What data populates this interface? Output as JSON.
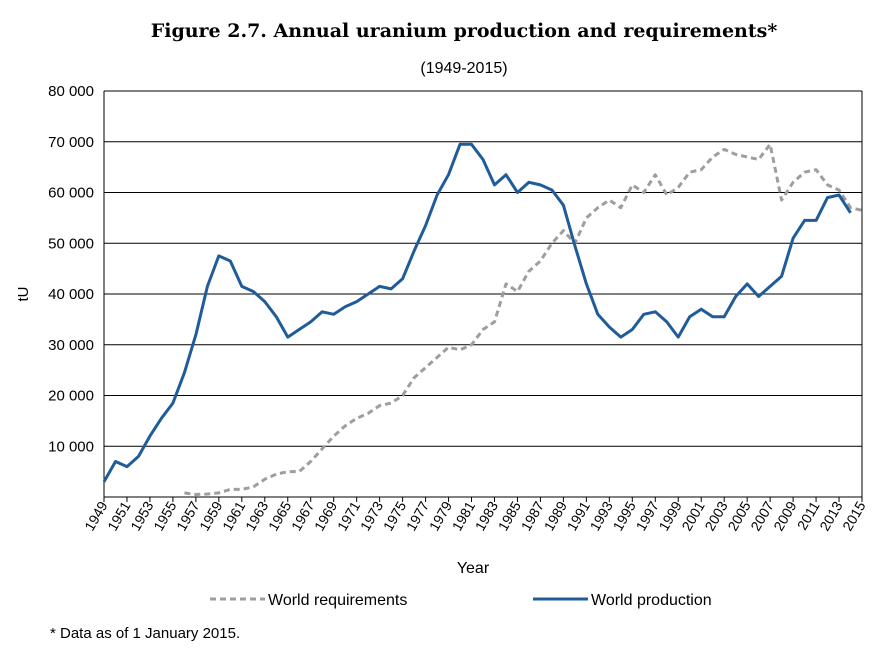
{
  "chart_data": {
    "type": "line",
    "title": "Figure 2.7. Annual uranium production and requirements*",
    "subtitle": "(1949-2015)",
    "xlabel": "Year",
    "ylabel": "tU",
    "ylim": [
      0,
      80000
    ],
    "xlim": [
      1949,
      2015
    ],
    "ytick_labels": [
      "10 000",
      "20 000",
      "30 000",
      "40 000",
      "50 000",
      "60 000",
      "70 000",
      "80 000"
    ],
    "ytick_values": [
      10000,
      20000,
      30000,
      40000,
      50000,
      60000,
      70000,
      80000
    ],
    "xtick_labels": [
      "1949",
      "1951",
      "1953",
      "1955",
      "1957",
      "1959",
      "1961",
      "1963",
      "1965",
      "1967",
      "1969",
      "1971",
      "1973",
      "1975",
      "1977",
      "1979",
      "1981",
      "1983",
      "1985",
      "1987",
      "1989",
      "1991",
      "1993",
      "1995",
      "1997",
      "1999",
      "2001",
      "2003",
      "2005",
      "2007",
      "2009",
      "2011",
      "2013",
      "2015"
    ],
    "grid": true,
    "legend_position": "bottom",
    "footnote": "* Data as of 1 January 2015.",
    "series": [
      {
        "name": "World requirements",
        "color": "#9e9e9e",
        "style": "dashed",
        "x": [
          1956,
          1957,
          1958,
          1959,
          1960,
          1961,
          1962,
          1963,
          1964,
          1965,
          1966,
          1967,
          1968,
          1969,
          1970,
          1971,
          1972,
          1973,
          1974,
          1975,
          1976,
          1977,
          1978,
          1979,
          1980,
          1981,
          1982,
          1983,
          1984,
          1985,
          1986,
          1987,
          1988,
          1989,
          1990,
          1991,
          1992,
          1993,
          1994,
          1995,
          1996,
          1997,
          1998,
          1999,
          2000,
          2001,
          2002,
          2003,
          2004,
          2005,
          2006,
          2007,
          2008,
          2009,
          2010,
          2011,
          2012,
          2013,
          2014,
          2015
        ],
        "values": [
          800,
          500,
          600,
          800,
          1500,
          1500,
          2000,
          3500,
          4500,
          5000,
          5000,
          7000,
          9500,
          12000,
          14000,
          15500,
          16500,
          18000,
          18500,
          20000,
          23500,
          25500,
          27500,
          29500,
          29000,
          30000,
          33000,
          34500,
          42000,
          40500,
          44500,
          46500,
          50000,
          52500,
          50000,
          55000,
          57000,
          58500,
          57000,
          61500,
          60000,
          63500,
          59500,
          61000,
          64000,
          64500,
          67000,
          68500,
          67500,
          67000,
          66500,
          69500,
          58500,
          62000,
          64000,
          64500,
          61500,
          60500,
          57000,
          56500
        ],
        "note": "pre-1955 segments nearly zero"
      },
      {
        "name": "World production",
        "color": "#1f5c99",
        "style": "solid",
        "x": [
          1949,
          1950,
          1951,
          1952,
          1953,
          1954,
          1955,
          1956,
          1957,
          1958,
          1959,
          1960,
          1961,
          1962,
          1963,
          1964,
          1965,
          1966,
          1967,
          1968,
          1969,
          1970,
          1971,
          1972,
          1973,
          1974,
          1975,
          1976,
          1977,
          1978,
          1979,
          1980,
          1981,
          1982,
          1983,
          1984,
          1985,
          1986,
          1987,
          1988,
          1989,
          1990,
          1991,
          1992,
          1993,
          1994,
          1995,
          1996,
          1997,
          1998,
          1999,
          2000,
          2001,
          2002,
          2003,
          2004,
          2005,
          2006,
          2007,
          2008,
          2009,
          2010,
          2011,
          2012,
          2013,
          2014,
          2015
        ],
        "values": [
          3000,
          7000,
          6000,
          8000,
          12000,
          15500,
          18500,
          24500,
          32000,
          41500,
          47500,
          46500,
          41500,
          40500,
          38500,
          35500,
          31500,
          33000,
          34500,
          36500,
          36000,
          37500,
          38500,
          40000,
          41500,
          41000,
          43000,
          48500,
          53500,
          59500,
          63500,
          69500,
          69500,
          66500,
          61500,
          63500,
          60000,
          62000,
          61500,
          60500,
          57500,
          49500,
          42000,
          36000,
          33500,
          31500,
          33000,
          36000,
          36500,
          34500,
          31500,
          35500,
          37000,
          35500,
          35500,
          39500,
          42000,
          39500,
          41500,
          43500,
          51000,
          54500,
          54500,
          59000,
          59500,
          56000,
          null
        ],
        "note": "last value null placeholder ignored"
      }
    ]
  }
}
